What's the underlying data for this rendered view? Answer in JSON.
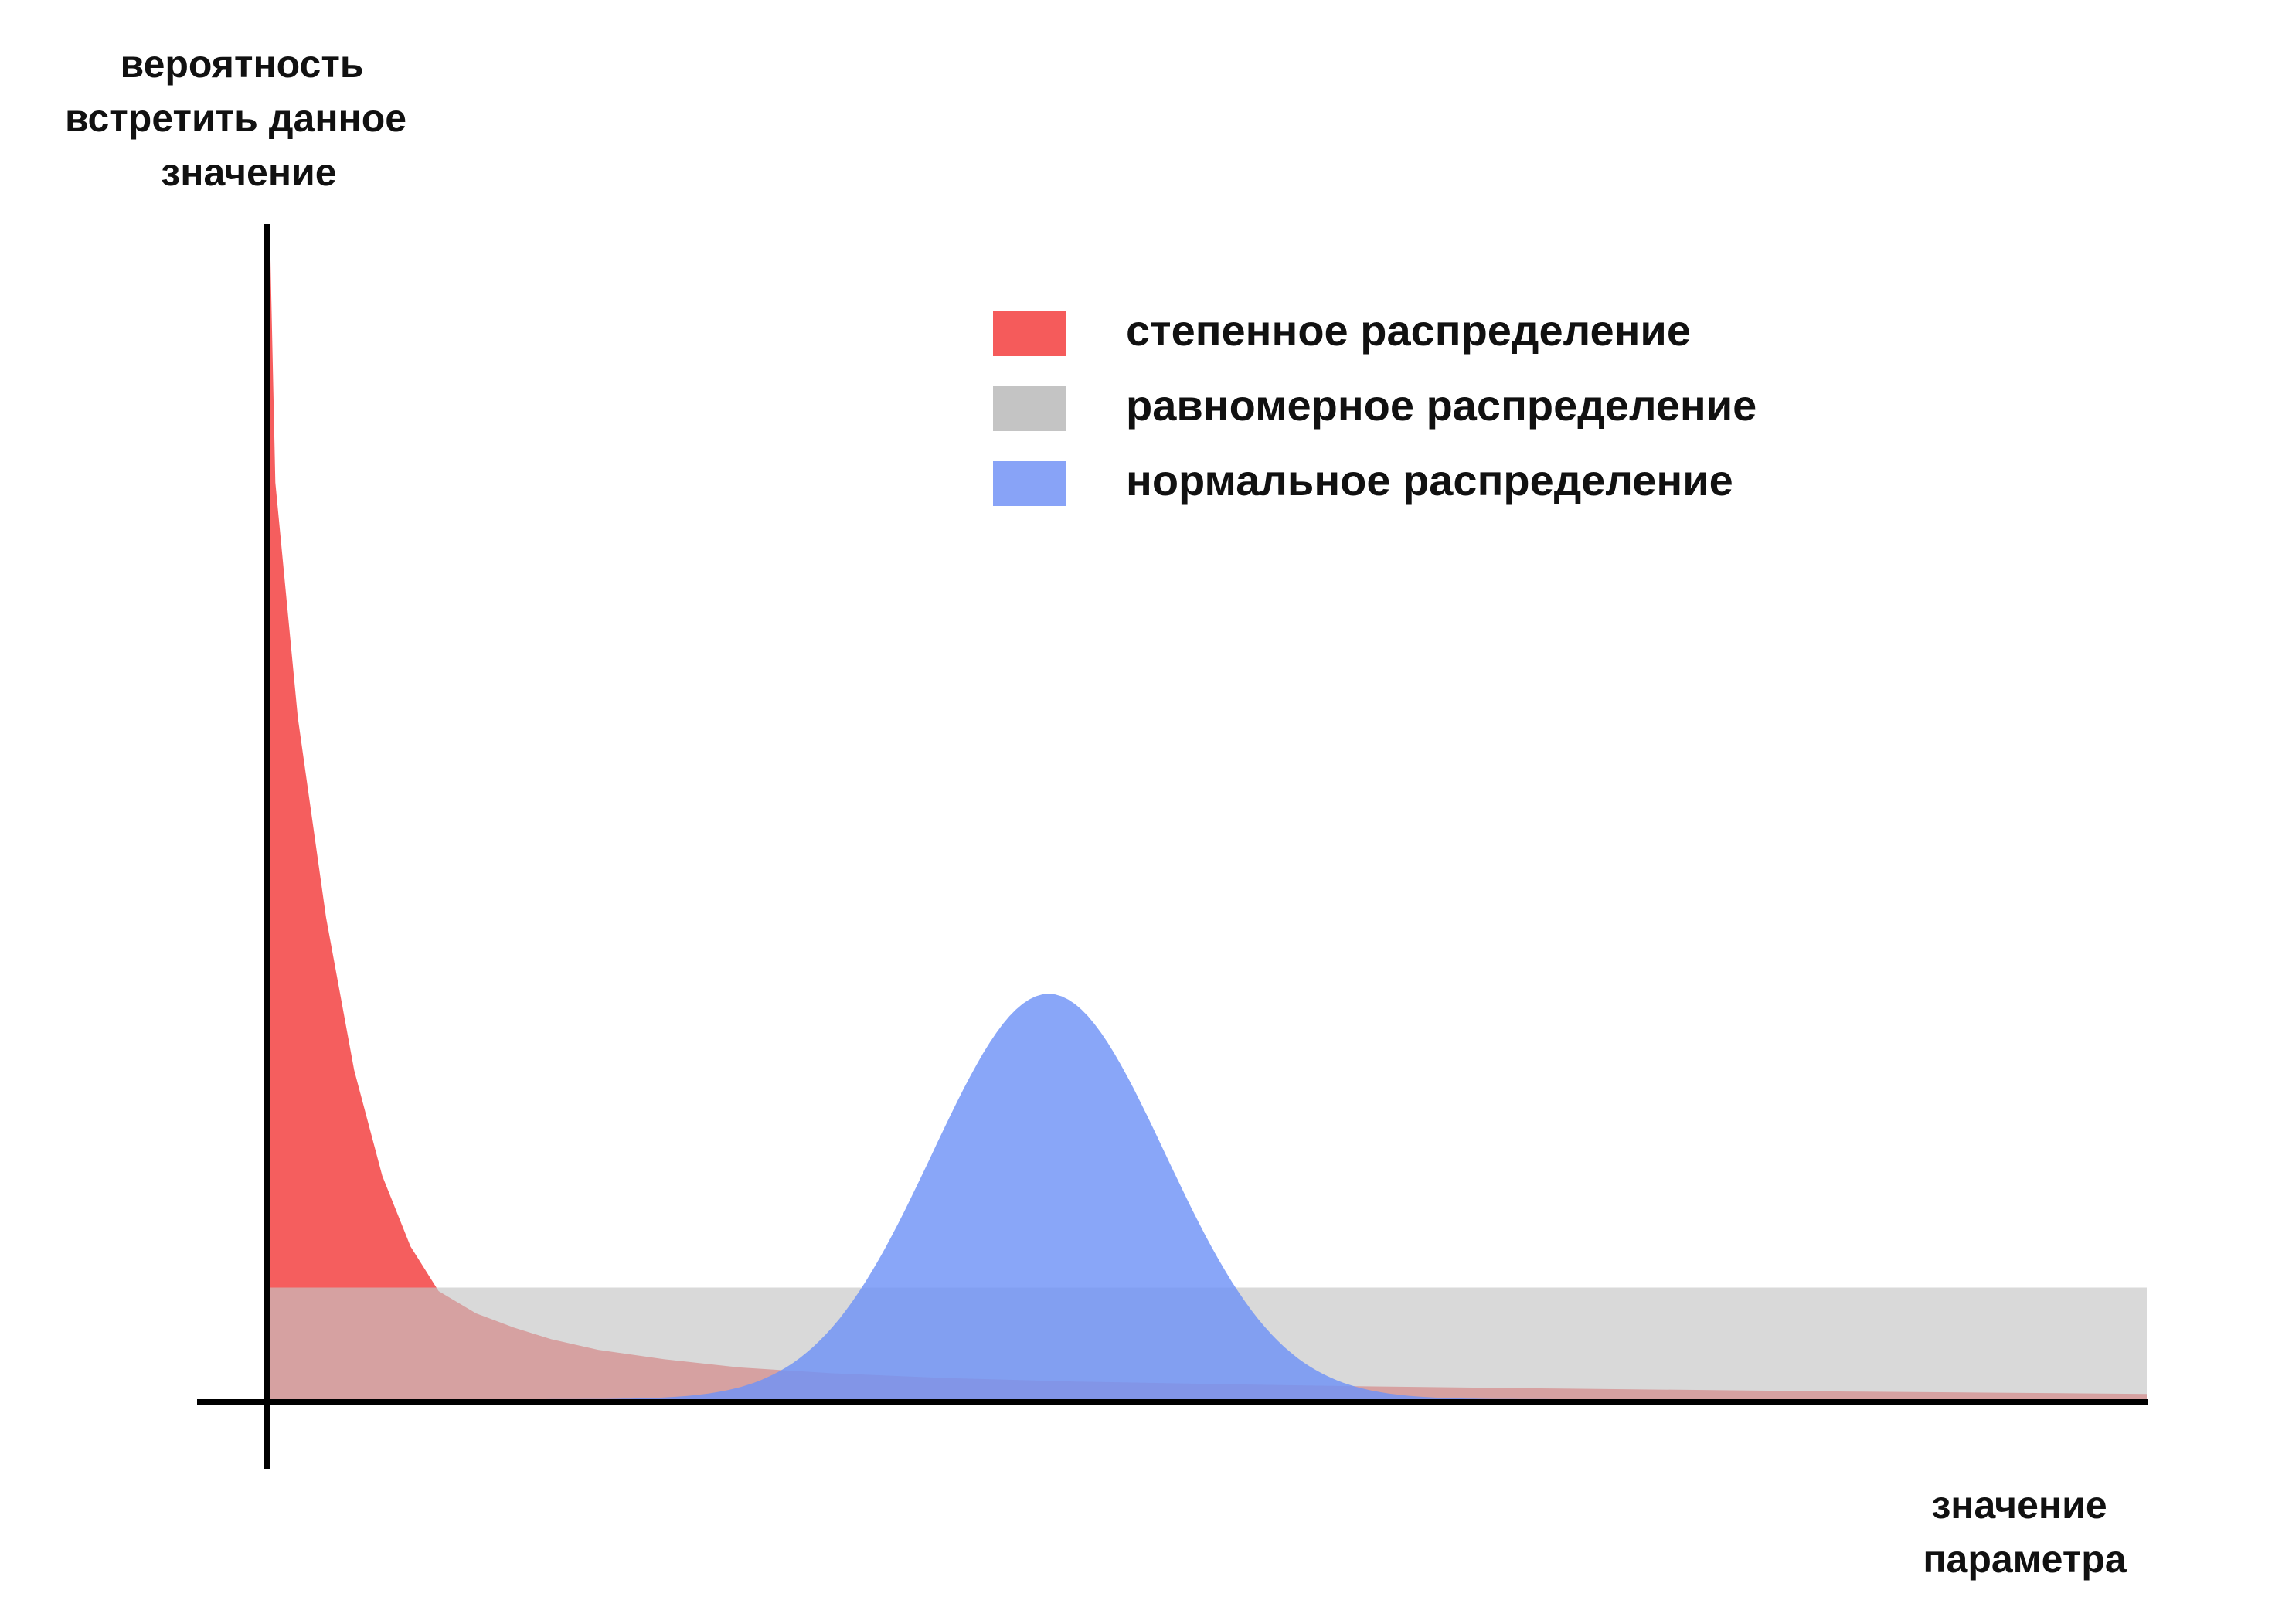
{
  "chart_data": {
    "type": "area",
    "ylabel_lines": [
      "вероятность",
      "встретить данное",
      "значение"
    ],
    "xlabel_lines": [
      "значение",
      "параметра"
    ],
    "xlim": [
      0,
      100
    ],
    "ylim": [
      0,
      100
    ],
    "grid": false,
    "legend_position": "top-right",
    "series": [
      {
        "name": "степенное распределение",
        "kind": "power",
        "color": "#f55b5b",
        "opacity": 0.98,
        "x": [
          0,
          0.3,
          1.5,
          3,
          4.5,
          6,
          7.5,
          9,
          11,
          13,
          15,
          17.5,
          21,
          25,
          30,
          36,
          43,
          50,
          58,
          66,
          75,
          84,
          92,
          100
        ],
        "y": [
          100,
          78,
          58,
          41,
          28,
          19,
          13,
          9.2,
          7.3,
          6.1,
          5.1,
          4.2,
          3.4,
          2.7,
          2.2,
          1.8,
          1.5,
          1.3,
          1.1,
          0.95,
          0.8,
          0.65,
          0.55,
          0.45
        ]
      },
      {
        "name": "равномерное распределение",
        "kind": "uniform",
        "color": "#c4c4c4",
        "opacity": 0.65,
        "range": [
          0,
          100
        ],
        "value": 9.5
      },
      {
        "name": "нормальное распределение",
        "kind": "normal",
        "color": "#6f93f6",
        "opacity": 0.82,
        "mean": 41.5,
        "sd": 6.2,
        "peak": 34.5
      }
    ]
  },
  "legend": {
    "items": [
      {
        "label": "степенное распределение",
        "color": "#f55b5b"
      },
      {
        "label": "равномерное распределение",
        "color": "#c4c4c4"
      },
      {
        "label": "нормальное распределение",
        "color": "#88a3f7"
      }
    ]
  }
}
